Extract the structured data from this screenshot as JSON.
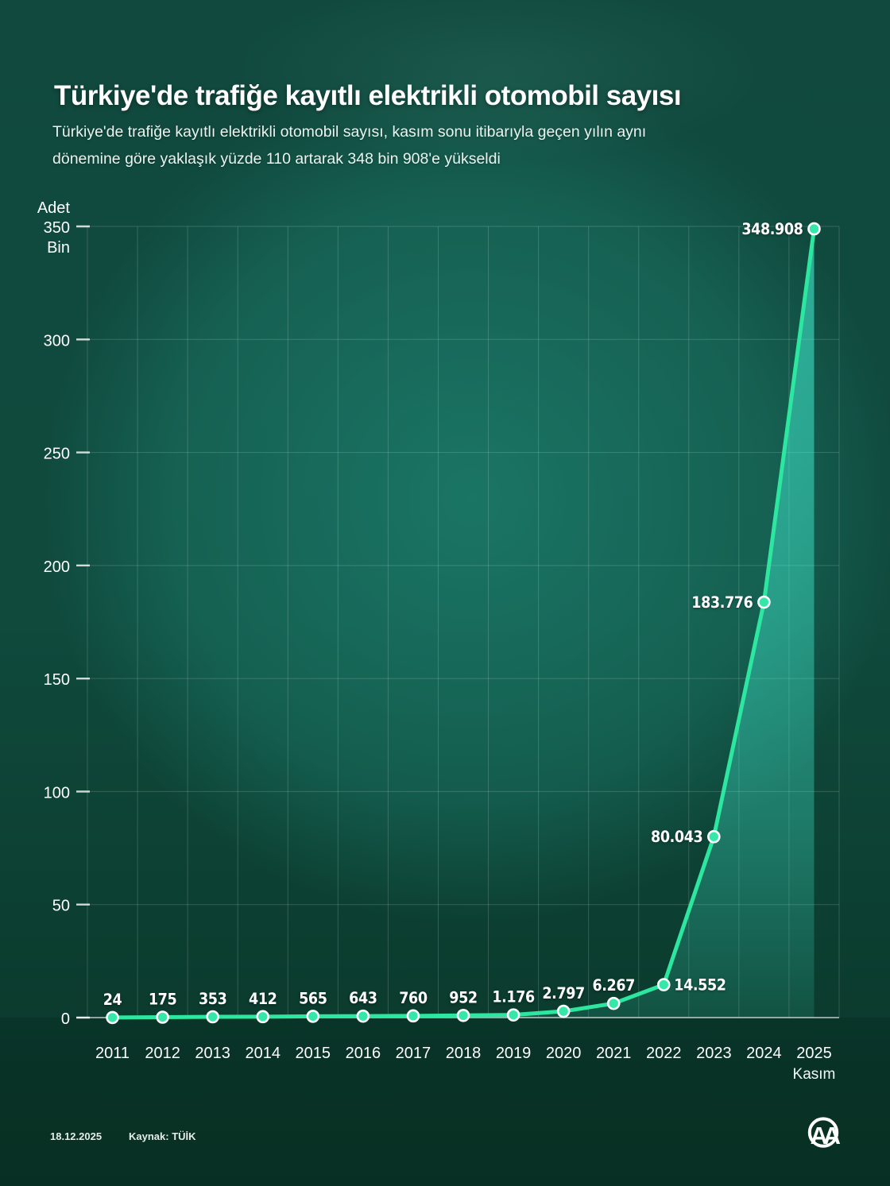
{
  "header": {
    "title": "Türkiye'de trafiğe kayıtlı elektrikli otomobil sayısı",
    "subtitle_lines": [
      "Türkiye'de trafiğe kayıtlı elektrikli otomobil sayısı, kasım sonu itibarıyla geçen yılın aynı",
      "dönemine göre yaklaşık yüzde 110 artarak 348 bin 908'e yükseldi"
    ]
  },
  "chart_data": {
    "type": "line",
    "title": "Türkiye'de trafiğe kayıtlı elektrikli otomobil sayısı",
    "xlabel": "",
    "ylabel": "Adet",
    "unit_label": "Adet",
    "y_axis": {
      "max_value": 350000,
      "tick_values_thousands": [
        350,
        300,
        250,
        200,
        150,
        100,
        50,
        0
      ],
      "tick_labels": [
        "350",
        "300",
        "250",
        "200",
        "150",
        "100",
        "50",
        "0"
      ],
      "top_tick_sub_label": "Bin",
      "grid": true
    },
    "categories": [
      "2011",
      "2012",
      "2013",
      "2014",
      "2015",
      "2016",
      "2017",
      "2018",
      "2019",
      "2020",
      "2021",
      "2022",
      "2023",
      "2024",
      "2025"
    ],
    "x_last_sub_label": "Kasım",
    "values": [
      24,
      175,
      353,
      412,
      565,
      643,
      760,
      952,
      1176,
      2797,
      6267,
      14552,
      80043,
      183776,
      348908
    ],
    "point_labels": [
      "24",
      "175",
      "353",
      "412",
      "565",
      "643",
      "760",
      "952",
      "1.176",
      "2.797",
      "6.267",
      "14.552",
      "80.043",
      "183.776",
      "348.908"
    ],
    "label_side": [
      "top",
      "top",
      "top",
      "top",
      "top",
      "top",
      "top",
      "top",
      "top",
      "top",
      "top",
      "right",
      "left",
      "left",
      "left"
    ],
    "legend": "none"
  },
  "colors": {
    "line": "#2de6a0",
    "marker_fill": "#35e7a8",
    "marker_stroke": "#ffffff",
    "area_base": "rgb(70,255,224)",
    "grid": "rgba(255,255,255,0.17)",
    "axis_line": "rgba(255,255,255,0.55)",
    "tick_dash": "rgba(255,255,255,0.8)",
    "text": "#ffffff",
    "bg_dark": "#093527",
    "bg_mid": "#0f4a3d",
    "bg_glow": "#22948 1"
  },
  "footer": {
    "date": "18.12.2025",
    "source": "Kaynak: TÜİK",
    "logo_text": "AA"
  }
}
